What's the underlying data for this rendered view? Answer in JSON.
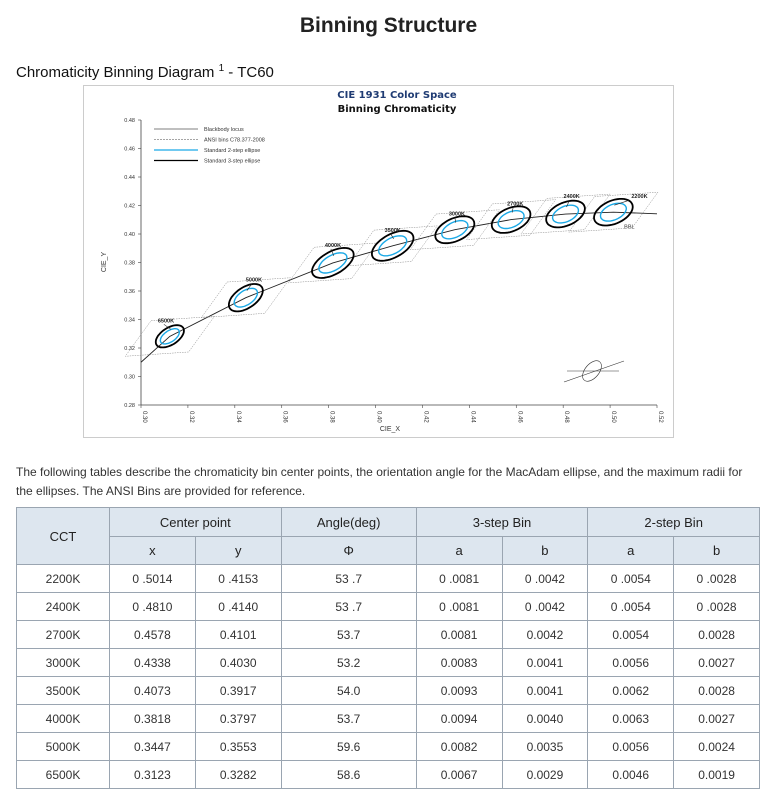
{
  "page": {
    "title": "Binning Structure",
    "subtitle": "Chromaticity Binning Diagram",
    "footnote": "1",
    "subtitle_suffix": " - TC60",
    "description": "The following tables describe the chromaticity bin center points, the orientation angle for the MacAdam ellipse, and the maximum radii for the ellipses. The ANSI Bins are provided for reference."
  },
  "chart_data": {
    "type": "scatter",
    "title": "CIE 1931 Color Space",
    "subtitle": "Binning Chromaticity",
    "xlabel": "CIE_X",
    "ylabel": "CIE_Y",
    "xlim": [
      0.3,
      0.52
    ],
    "ylim": [
      0.28,
      0.48
    ],
    "xticks": [
      "0.30",
      "0.32",
      "0.34",
      "0.36",
      "0.38",
      "0.40",
      "0.42",
      "0.44",
      "0.46",
      "0.48",
      "0.50",
      "0.52"
    ],
    "yticks": [
      "0.28",
      "0.30",
      "0.32",
      "0.34",
      "0.36",
      "0.38",
      "0.40",
      "0.42",
      "0.44",
      "0.46",
      "0.48"
    ],
    "legend": [
      "Blackbody locus",
      "ANSI bins C78.377-2008",
      "Standard 2-step ellipse",
      "Standard 3-step ellipse"
    ],
    "legend_position": "top-left",
    "bbl_label": "BBL",
    "colors": {
      "two_step": "#1ba9e6",
      "three_step": "#000000",
      "ansi": "#888888"
    },
    "points": [
      {
        "label": "2200K",
        "x": 0.5014,
        "y": 0.4153
      },
      {
        "label": "2400K",
        "x": 0.481,
        "y": 0.414
      },
      {
        "label": "2700K",
        "x": 0.4578,
        "y": 0.4101
      },
      {
        "label": "3000K",
        "x": 0.4338,
        "y": 0.403
      },
      {
        "label": "3500K",
        "x": 0.4073,
        "y": 0.3917
      },
      {
        "label": "4000K",
        "x": 0.3818,
        "y": 0.3797
      },
      {
        "label": "5000K",
        "x": 0.3447,
        "y": 0.3553
      },
      {
        "label": "6500K",
        "x": 0.3123,
        "y": 0.3282
      }
    ]
  },
  "table": {
    "headers": {
      "cct": "CCT",
      "center": "Center point",
      "angle": "Angle(deg)",
      "three": "3-step Bin",
      "two": "2-step Bin",
      "x": "x",
      "y": "y",
      "phi": "Φ",
      "a3": "a",
      "b3": "b",
      "a2": "a",
      "b2": "b"
    },
    "rows": [
      [
        "2200K",
        "0 .5014",
        "0 .4153",
        "53 .7",
        "0 .0081",
        "0 .0042",
        "0 .0054",
        "0 .0028"
      ],
      [
        "2400K",
        "0 .4810",
        "0 .4140",
        "53 .7",
        "0 .0081",
        "0 .0042",
        "0 .0054",
        "0 .0028"
      ],
      [
        "2700K",
        "0.4578",
        "0.4101",
        "53.7",
        "0.0081",
        "0.0042",
        "0.0054",
        "0.0028"
      ],
      [
        "3000K",
        "0.4338",
        "0.4030",
        "53.2",
        "0.0083",
        "0.0041",
        "0.0056",
        "0.0027"
      ],
      [
        "3500K",
        "0.4073",
        "0.3917",
        "54.0",
        "0.0093",
        "0.0041",
        "0.0062",
        "0.0028"
      ],
      [
        "4000K",
        "0.3818",
        "0.3797",
        "53.7",
        "0.0094",
        "0.0040",
        "0.0063",
        "0.0027"
      ],
      [
        "5000K",
        "0.3447",
        "0.3553",
        "59.6",
        "0.0082",
        "0.0035",
        "0.0056",
        "0.0024"
      ],
      [
        "6500K",
        "0.3123",
        "0.3282",
        "58.6",
        "0.0067",
        "0.0029",
        "0.0046",
        "0.0019"
      ]
    ]
  }
}
